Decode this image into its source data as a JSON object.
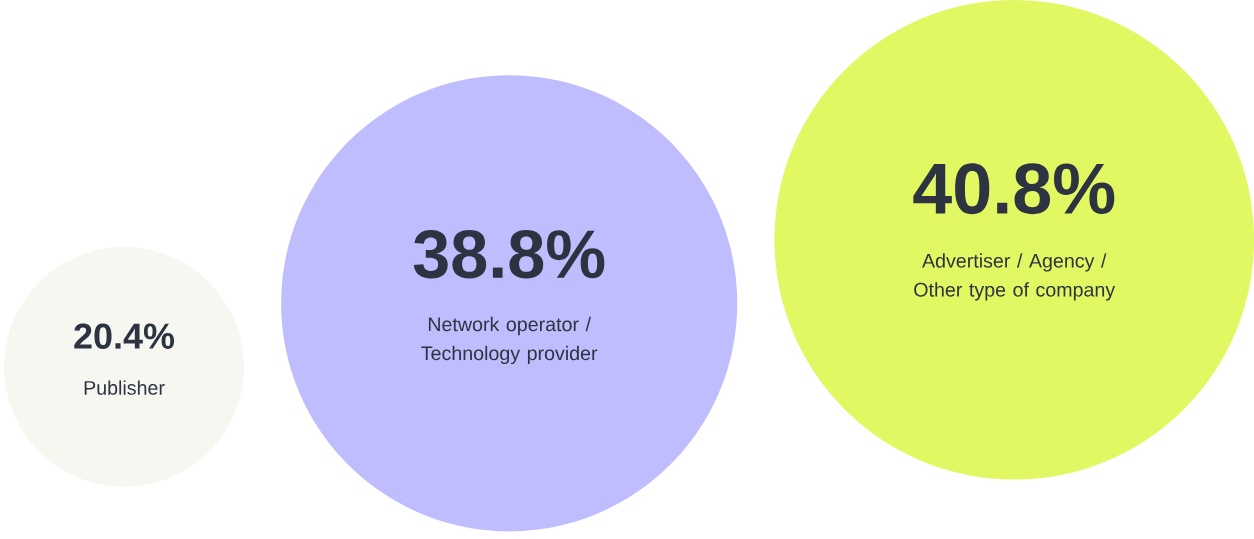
{
  "chart_data": {
    "type": "other",
    "categories": [
      "Publisher",
      "Network operator / Technology provider",
      "Advertiser / Agency / Other type of company"
    ],
    "values": [
      20.4,
      38.8,
      40.8
    ],
    "value_labels": [
      "20.4%",
      "38.8%",
      "40.8%"
    ],
    "colors": [
      "#f7f7f2",
      "#bfbdfe",
      "#e2f862"
    ]
  }
}
